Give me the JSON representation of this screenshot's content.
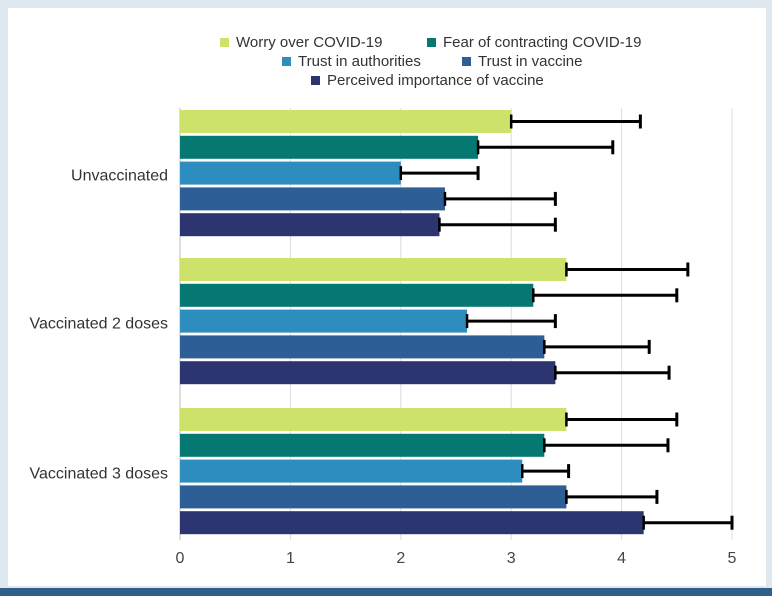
{
  "chart_data": {
    "type": "bar",
    "orientation": "horizontal",
    "categories": [
      "Unvaccinated",
      "Vaccinated 2 doses",
      "Vaccinated 3 doses"
    ],
    "series": [
      {
        "name": "Worry over COVID-19",
        "color": "#cde26a",
        "values": [
          3.0,
          3.5,
          3.5
        ],
        "errors": [
          1.17,
          1.1,
          1.0
        ]
      },
      {
        "name": "Fear of contracting COVID-19",
        "color": "#067872",
        "values": [
          2.7,
          3.2,
          3.3
        ],
        "errors": [
          1.22,
          1.3,
          1.12
        ]
      },
      {
        "name": "Trust in authorities",
        "color": "#2d8dbf",
        "values": [
          2.0,
          2.6,
          3.1
        ],
        "errors": [
          0.7,
          0.8,
          0.42
        ]
      },
      {
        "name": "Trust in vaccine",
        "color": "#2d5e96",
        "values": [
          2.4,
          3.3,
          3.5
        ],
        "errors": [
          1.0,
          0.95,
          0.82
        ]
      },
      {
        "name": "Perceived importance of vaccine",
        "color": "#2c3570",
        "values": [
          2.35,
          3.4,
          4.2
        ],
        "errors": [
          1.05,
          1.03,
          0.8
        ]
      }
    ],
    "xlim": [
      0,
      5
    ],
    "xticks": [
      "0",
      "1",
      "2",
      "3",
      "4",
      "5"
    ],
    "grid": true,
    "legend_position": "top-center",
    "error_bars": "one-sided, black"
  }
}
